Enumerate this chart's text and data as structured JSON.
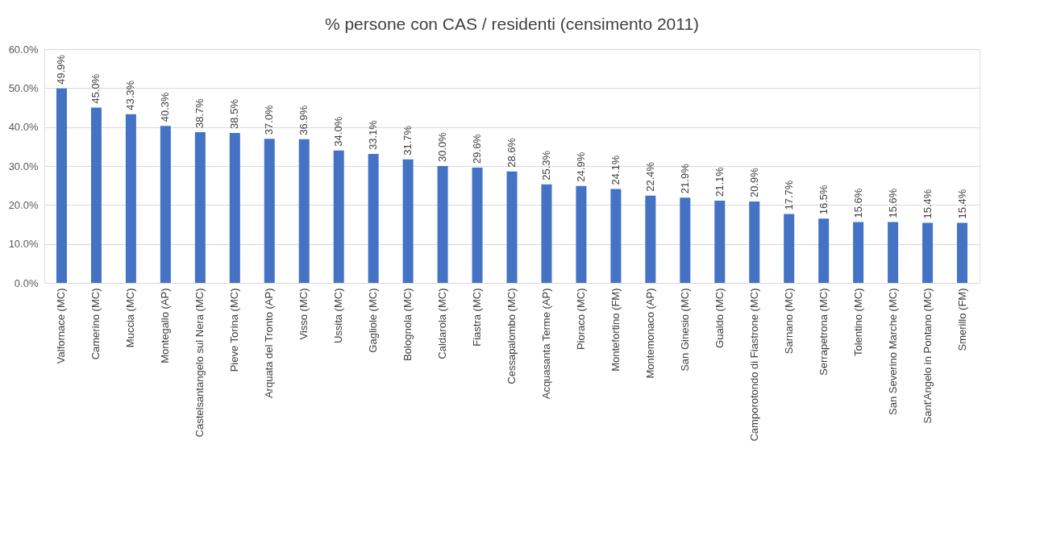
{
  "chart_data": {
    "type": "bar",
    "title": "% persone con CAS / residenti (censimento 2011)",
    "categories": [
      "Valfornace (MC)",
      "Camerino (MC)",
      "Muccia (MC)",
      "Montegallo (AP)",
      "Castelsantangelo sul Nera (MC)",
      "Pieve Torina (MC)",
      "Arquata del Tronto (AP)",
      "Visso (MC)",
      "Ussita (MC)",
      "Gagliole (MC)",
      "Bolognola (MC)",
      "Caldarola (MC)",
      "Fiastra (MC)",
      "Cessapalombo (MC)",
      "Acquasanta Terme (AP)",
      "Pioraco (MC)",
      "Montefortino (FM)",
      "Montemonaco (AP)",
      "San Ginesio (MC)",
      "Gualdo (MC)",
      "Camporotondo di Fiastrone (MC)",
      "Sarnano (MC)",
      "Serrapetrona (MC)",
      "Tolentino (MC)",
      "San Severino Marche (MC)",
      "Sant'Angelo in Pontano (MC)",
      "Smerillo (FM)"
    ],
    "values": [
      49.9,
      45.0,
      43.3,
      40.3,
      38.7,
      38.5,
      37.0,
      36.9,
      34.0,
      33.1,
      31.7,
      30.0,
      29.6,
      28.6,
      25.3,
      24.9,
      24.1,
      22.4,
      21.9,
      21.1,
      20.9,
      17.7,
      16.5,
      15.6,
      15.6,
      15.4,
      15.4
    ],
    "value_labels": [
      "49.9%",
      "45.0%",
      "43.3%",
      "40.3%",
      "38.7%",
      "38.5%",
      "37.0%",
      "36.9%",
      "34.0%",
      "33.1%",
      "31.7%",
      "30.0%",
      "29.6%",
      "28.6%",
      "25.3%",
      "24.9%",
      "24.1%",
      "22.4%",
      "21.9%",
      "21.1%",
      "20.9%",
      "17.7%",
      "16.5%",
      "15.6%",
      "15.6%",
      "15.4%",
      "15.4%"
    ],
    "color": "#4472c4",
    "ylim": [
      0,
      60
    ],
    "yticks": [
      {
        "value": 0,
        "label": "0.0%"
      },
      {
        "value": 10,
        "label": "10.0%"
      },
      {
        "value": 20,
        "label": "20.0%"
      },
      {
        "value": 30,
        "label": "30.0%"
      },
      {
        "value": 40,
        "label": "40.0%"
      },
      {
        "value": 50,
        "label": "50.0%"
      },
      {
        "value": 60,
        "label": "60.0%"
      }
    ],
    "grid": "y"
  }
}
